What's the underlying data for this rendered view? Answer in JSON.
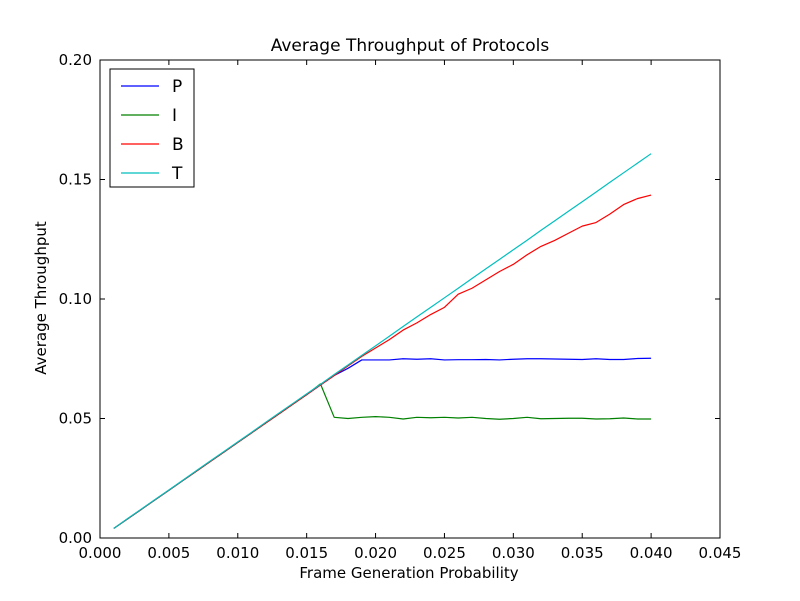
{
  "chart_data": {
    "type": "line",
    "title": "Average Throughput of Protocols",
    "xlabel": "Frame Generation Probability",
    "ylabel": "Average Throughput",
    "xlim": [
      0.0,
      0.045
    ],
    "ylim": [
      0.0,
      0.2
    ],
    "grid": false,
    "legend_position": "top-left",
    "x_ticks": [
      0.0,
      0.005,
      0.01,
      0.015,
      0.02,
      0.025,
      0.03,
      0.035,
      0.04,
      0.045
    ],
    "x_tick_labels": [
      "0.000",
      "0.005",
      "0.010",
      "0.015",
      "0.020",
      "0.025",
      "0.030",
      "0.035",
      "0.040",
      "0.045"
    ],
    "y_ticks": [
      0.0,
      0.05,
      0.1,
      0.15,
      0.2
    ],
    "y_tick_labels": [
      "0.00",
      "0.05",
      "0.10",
      "0.15",
      "0.20"
    ],
    "series": [
      {
        "name": "P",
        "color": "#0000ff",
        "x": [
          0.001,
          0.002,
          0.003,
          0.004,
          0.005,
          0.006,
          0.007,
          0.008,
          0.009,
          0.01,
          0.011,
          0.012,
          0.013,
          0.014,
          0.015,
          0.016,
          0.017,
          0.018,
          0.019,
          0.02,
          0.021,
          0.022,
          0.023,
          0.024,
          0.025,
          0.026,
          0.027,
          0.028,
          0.029,
          0.03,
          0.031,
          0.032,
          0.033,
          0.034,
          0.035,
          0.036,
          0.037,
          0.038,
          0.039,
          0.04
        ],
        "y": [
          0.004,
          0.008,
          0.012,
          0.016,
          0.02,
          0.024,
          0.028,
          0.032,
          0.036,
          0.04,
          0.044,
          0.048,
          0.052,
          0.056,
          0.06,
          0.064,
          0.068,
          0.071,
          0.0745,
          0.0745,
          0.0745,
          0.075,
          0.0748,
          0.075,
          0.0745,
          0.0746,
          0.0746,
          0.0747,
          0.0745,
          0.0748,
          0.075,
          0.075,
          0.0749,
          0.0748,
          0.0747,
          0.075,
          0.0747,
          0.0747,
          0.0751,
          0.0752
        ]
      },
      {
        "name": "I",
        "color": "#008000",
        "x": [
          0.001,
          0.002,
          0.003,
          0.004,
          0.005,
          0.006,
          0.007,
          0.008,
          0.009,
          0.01,
          0.011,
          0.012,
          0.013,
          0.014,
          0.015,
          0.016,
          0.017,
          0.018,
          0.019,
          0.02,
          0.021,
          0.022,
          0.023,
          0.024,
          0.025,
          0.026,
          0.027,
          0.028,
          0.029,
          0.03,
          0.031,
          0.032,
          0.033,
          0.034,
          0.035,
          0.036,
          0.037,
          0.038,
          0.039,
          0.04
        ],
        "y": [
          0.004,
          0.008,
          0.012,
          0.016,
          0.02,
          0.024,
          0.028,
          0.032,
          0.036,
          0.04,
          0.044,
          0.048,
          0.052,
          0.056,
          0.06,
          0.0645,
          0.0505,
          0.05,
          0.0505,
          0.0508,
          0.0505,
          0.0498,
          0.0505,
          0.0503,
          0.0505,
          0.0502,
          0.0505,
          0.05,
          0.0497,
          0.05,
          0.0505,
          0.0499,
          0.05,
          0.0501,
          0.0501,
          0.0498,
          0.0499,
          0.0502,
          0.0498,
          0.0498
        ]
      },
      {
        "name": "B",
        "color": "#ff0000",
        "x": [
          0.001,
          0.002,
          0.003,
          0.004,
          0.005,
          0.006,
          0.007,
          0.008,
          0.009,
          0.01,
          0.011,
          0.012,
          0.013,
          0.014,
          0.015,
          0.016,
          0.017,
          0.018,
          0.019,
          0.02,
          0.021,
          0.022,
          0.023,
          0.024,
          0.025,
          0.026,
          0.027,
          0.028,
          0.029,
          0.03,
          0.031,
          0.032,
          0.033,
          0.034,
          0.035,
          0.036,
          0.037,
          0.038,
          0.039,
          0.04
        ],
        "y": [
          0.004,
          0.008,
          0.012,
          0.016,
          0.02,
          0.024,
          0.028,
          0.032,
          0.036,
          0.04,
          0.044,
          0.048,
          0.052,
          0.056,
          0.06,
          0.064,
          0.068,
          0.072,
          0.076,
          0.0795,
          0.083,
          0.087,
          0.09,
          0.0935,
          0.0965,
          0.102,
          0.1045,
          0.108,
          0.1115,
          0.1145,
          0.1185,
          0.122,
          0.1245,
          0.1275,
          0.1305,
          0.132,
          0.1355,
          0.1395,
          0.142,
          0.1435
        ]
      },
      {
        "name": "T",
        "color": "#00bfbf",
        "x": [
          0.001,
          0.002,
          0.003,
          0.004,
          0.005,
          0.006,
          0.007,
          0.008,
          0.009,
          0.01,
          0.011,
          0.012,
          0.013,
          0.014,
          0.015,
          0.016,
          0.017,
          0.018,
          0.019,
          0.02,
          0.021,
          0.022,
          0.023,
          0.024,
          0.025,
          0.026,
          0.027,
          0.028,
          0.029,
          0.03,
          0.031,
          0.032,
          0.033,
          0.034,
          0.035,
          0.036,
          0.037,
          0.038,
          0.039,
          0.04
        ],
        "y": [
          0.004,
          0.0081,
          0.0121,
          0.0161,
          0.0201,
          0.0241,
          0.0282,
          0.0322,
          0.0362,
          0.0402,
          0.0442,
          0.0483,
          0.0523,
          0.0563,
          0.0603,
          0.0643,
          0.0684,
          0.0724,
          0.0764,
          0.0804,
          0.0844,
          0.0885,
          0.0925,
          0.0965,
          0.1005,
          0.1045,
          0.1086,
          0.1126,
          0.1166,
          0.1206,
          0.1246,
          0.1287,
          0.1327,
          0.1367,
          0.1407,
          0.1447,
          0.1488,
          0.1528,
          0.1568,
          0.1608
        ]
      }
    ]
  }
}
